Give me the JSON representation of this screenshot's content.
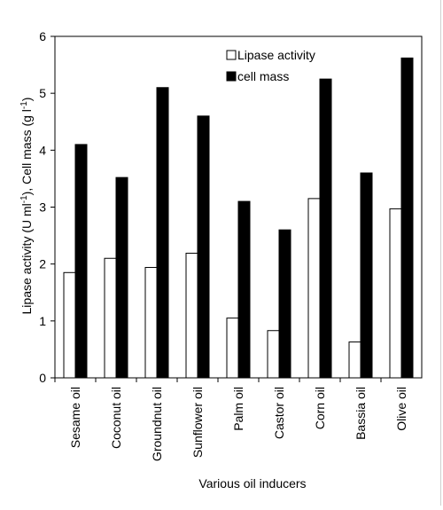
{
  "chart_data": {
    "type": "bar",
    "categories": [
      "Sesame oil",
      "Coconut oil",
      "Groundnut oil",
      "Sunflower oil",
      "Palm oil",
      "Castor oil",
      "Corn oil",
      "Bassia oil",
      "Olive oil"
    ],
    "series": [
      {
        "name": "Lipase activity",
        "values": [
          1.85,
          2.1,
          1.94,
          2.19,
          1.05,
          0.83,
          3.15,
          0.63,
          2.97
        ],
        "fill": "#ffffff"
      },
      {
        "name": "cell mass",
        "values": [
          4.1,
          3.52,
          5.1,
          4.6,
          3.1,
          2.6,
          5.25,
          3.6,
          5.62
        ],
        "fill": "#000000"
      }
    ],
    "xlabel": "Various oil inducers",
    "ylabel_parts": [
      "Lipase activity (U ml",
      "-1",
      "), Cell mass (g l",
      "-1",
      ")"
    ],
    "ylim": [
      0,
      6
    ],
    "yticks": [
      "0",
      "1",
      "2",
      "3",
      "4",
      "5",
      "6"
    ],
    "legend_position": "top-right",
    "grid": false
  }
}
